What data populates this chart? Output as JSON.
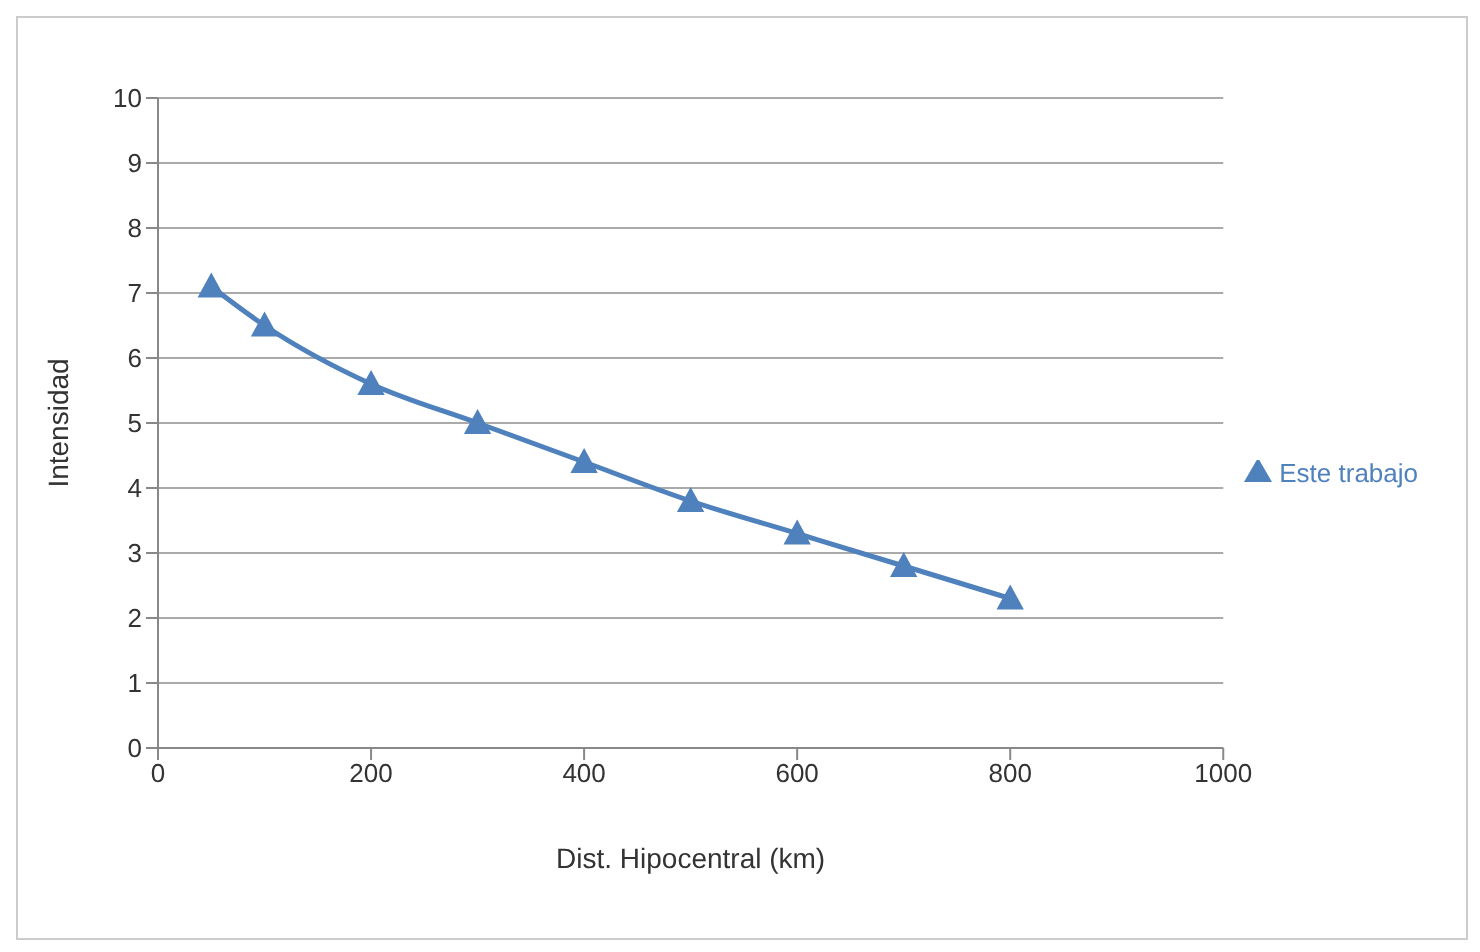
{
  "chart_data": {
    "type": "line",
    "xlabel": "Dist. Hipocentral (km)",
    "ylabel": "Intensidad",
    "x": [
      50,
      100,
      200,
      300,
      400,
      500,
      600,
      700,
      800
    ],
    "series": [
      {
        "name": "Este trabajo",
        "color": "#4f81bd",
        "values": [
          7.1,
          6.5,
          5.6,
          5.0,
          4.4,
          3.8,
          3.3,
          2.8,
          2.3
        ]
      }
    ],
    "xlim": [
      0,
      1000
    ],
    "xticks": [
      0,
      200,
      400,
      600,
      800,
      1000
    ],
    "ylim": [
      0,
      10
    ],
    "yticks": [
      0,
      1,
      2,
      3,
      4,
      5,
      6,
      7,
      8,
      9,
      10
    ],
    "grid": "y",
    "legend": "right",
    "marker": "triangle",
    "line_style": "solid"
  }
}
